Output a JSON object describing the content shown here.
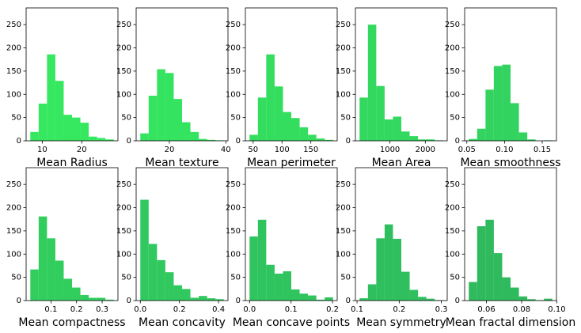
{
  "chart_data": [
    {
      "type": "histogram",
      "xlabel": "Mean Radius",
      "color": "#36e85f",
      "bins": [
        6.981,
        9.094,
        11.207,
        13.32,
        15.433,
        17.546,
        19.658,
        21.771,
        23.884,
        25.997,
        28.11
      ],
      "counts": [
        19,
        80,
        186,
        129,
        56,
        50,
        39,
        9,
        6,
        3
      ],
      "xlim": [
        5.92,
        29.17
      ],
      "ylim": [
        0,
        286
      ],
      "xticks": [
        10,
        20
      ],
      "yticks": [
        0,
        50,
        100,
        150,
        200,
        250
      ]
    },
    {
      "type": "histogram",
      "xlabel": "Mean texture",
      "color": "#34e35f",
      "bins": [
        9.71,
        12.667,
        15.624,
        18.581,
        21.538,
        24.495,
        27.452,
        30.409,
        33.366,
        36.323,
        39.28
      ],
      "counts": [
        16,
        97,
        154,
        146,
        90,
        40,
        19,
        4,
        2,
        1
      ],
      "xlim": [
        8.23,
        40.76
      ],
      "ylim": [
        0,
        286
      ],
      "xticks": [
        20,
        40
      ],
      "yticks": [
        0,
        50,
        100,
        150,
        200,
        250
      ]
    },
    {
      "type": "histogram",
      "xlabel": "Mean perimeter",
      "color": "#33de5e",
      "bins": [
        43.79,
        58.26,
        72.73,
        87.2,
        101.67,
        116.15,
        130.62,
        145.09,
        159.56,
        174.03,
        188.5
      ],
      "counts": [
        13,
        93,
        186,
        117,
        62,
        49,
        29,
        13,
        5,
        2
      ],
      "xlim": [
        36.55,
        195.7
      ],
      "ylim": [
        0,
        286
      ],
      "xticks": [
        50,
        100,
        150
      ],
      "yticks": [
        0,
        50,
        100,
        150,
        200,
        250
      ]
    },
    {
      "type": "histogram",
      "xlabel": "Mean Area",
      "color": "#33d85f",
      "bins": [
        143.5,
        379.25,
        615,
        850.75,
        1086.5,
        1322.25,
        1558,
        1793.75,
        2029.5,
        2265.25,
        2501
      ],
      "counts": [
        93,
        250,
        118,
        46,
        52,
        20,
        10,
        3,
        3,
        1
      ],
      "xlim": [
        25.6,
        2619
      ],
      "ylim": [
        0,
        286
      ],
      "xticks": [
        1000,
        2000
      ],
      "yticks": [
        0,
        50,
        100,
        150,
        200,
        250
      ]
    },
    {
      "type": "histogram",
      "xlabel": "Mean smoothness",
      "color": "#32d35e",
      "bins": [
        0.0526,
        0.0637,
        0.0748,
        0.0858,
        0.0969,
        0.108,
        0.1191,
        0.1302,
        0.1412,
        0.1523,
        0.1634
      ],
      "counts": [
        4,
        26,
        110,
        161,
        164,
        81,
        18,
        3,
        0,
        1
      ],
      "xlim": [
        0.0471,
        0.1689
      ],
      "ylim": [
        0,
        286
      ],
      "xticks": [
        0.05,
        {
          "value": 0.1,
          "label": "0.10"
        },
        0.15
      ],
      "yticks": [
        0,
        50,
        100,
        150,
        200,
        250
      ]
    },
    {
      "type": "histogram",
      "xlabel": "Mean compactness",
      "color": "#31ce5e",
      "bins": [
        0.0194,
        0.052,
        0.0846,
        0.1172,
        0.1498,
        0.1824,
        0.215,
        0.2476,
        0.2802,
        0.3128,
        0.3454
      ],
      "counts": [
        67,
        181,
        134,
        86,
        47,
        28,
        12,
        6,
        6,
        2
      ],
      "xlim": [
        0.003,
        0.3617
      ],
      "ylim": [
        0,
        286
      ],
      "xticks": [
        0.1,
        0.2,
        0.3
      ],
      "yticks": [
        0,
        50,
        100,
        150,
        200,
        250
      ]
    },
    {
      "type": "histogram",
      "xlabel": "Mean concavity",
      "color": "#31c95f",
      "bins": [
        0,
        0.0427,
        0.0854,
        0.128,
        0.1707,
        0.2134,
        0.2561,
        0.2988,
        0.3414,
        0.3841,
        0.4268
      ],
      "counts": [
        217,
        122,
        87,
        61,
        33,
        25,
        6,
        10,
        5,
        3
      ],
      "xlim": [
        -0.0213,
        0.4481
      ],
      "ylim": [
        0,
        286
      ],
      "xticks": [
        {
          "value": 0,
          "label": "0.0"
        },
        0.2,
        0.4
      ],
      "yticks": [
        0,
        50,
        100,
        150,
        200,
        250
      ]
    },
    {
      "type": "histogram",
      "xlabel": "Mean concave points",
      "color": "#30c45e",
      "bins": [
        0,
        0.0201,
        0.0402,
        0.0604,
        0.0805,
        0.1006,
        0.1207,
        0.1408,
        0.161,
        0.1811,
        0.2012
      ],
      "counts": [
        138,
        174,
        77,
        58,
        63,
        24,
        15,
        11,
        2,
        7
      ],
      "xlim": [
        -0.0101,
        0.2113
      ],
      "ylim": [
        0,
        286
      ],
      "xticks": [
        {
          "value": 0,
          "label": "0.0"
        },
        0.1,
        0.2
      ],
      "yticks": [
        0,
        50,
        100,
        150,
        200,
        250
      ]
    },
    {
      "type": "histogram",
      "xlabel": "Mean symmetry",
      "color": "#2fbf5f",
      "bins": [
        0.106,
        0.1258,
        0.1456,
        0.1654,
        0.1852,
        0.205,
        0.2248,
        0.2446,
        0.2644,
        0.2842,
        0.304
      ],
      "counts": [
        5,
        35,
        134,
        164,
        133,
        62,
        23,
        8,
        4,
        1
      ],
      "xlim": [
        0.0961,
        0.3139
      ],
      "ylim": [
        0,
        286
      ],
      "xticks": [
        0.1,
        0.2,
        0.3
      ],
      "yticks": [
        0,
        50,
        100,
        150,
        200,
        250
      ]
    },
    {
      "type": "histogram",
      "xlabel": "Mean fractal dimension",
      "color": "#2fba5e",
      "bins": [
        0.04996,
        0.05471,
        0.05946,
        0.0642,
        0.06895,
        0.0737,
        0.07845,
        0.0832,
        0.08795,
        0.09269,
        0.09744
      ],
      "counts": [
        40,
        160,
        174,
        102,
        50,
        28,
        9,
        3,
        1,
        4
      ],
      "xlim": [
        0.0476,
        0.0998
      ],
      "ylim": [
        0,
        286
      ],
      "xticks": [
        0.06,
        0.08,
        {
          "value": 0.1,
          "label": "0.10"
        }
      ],
      "yticks": [
        0,
        50,
        100,
        150,
        200,
        250
      ]
    }
  ]
}
